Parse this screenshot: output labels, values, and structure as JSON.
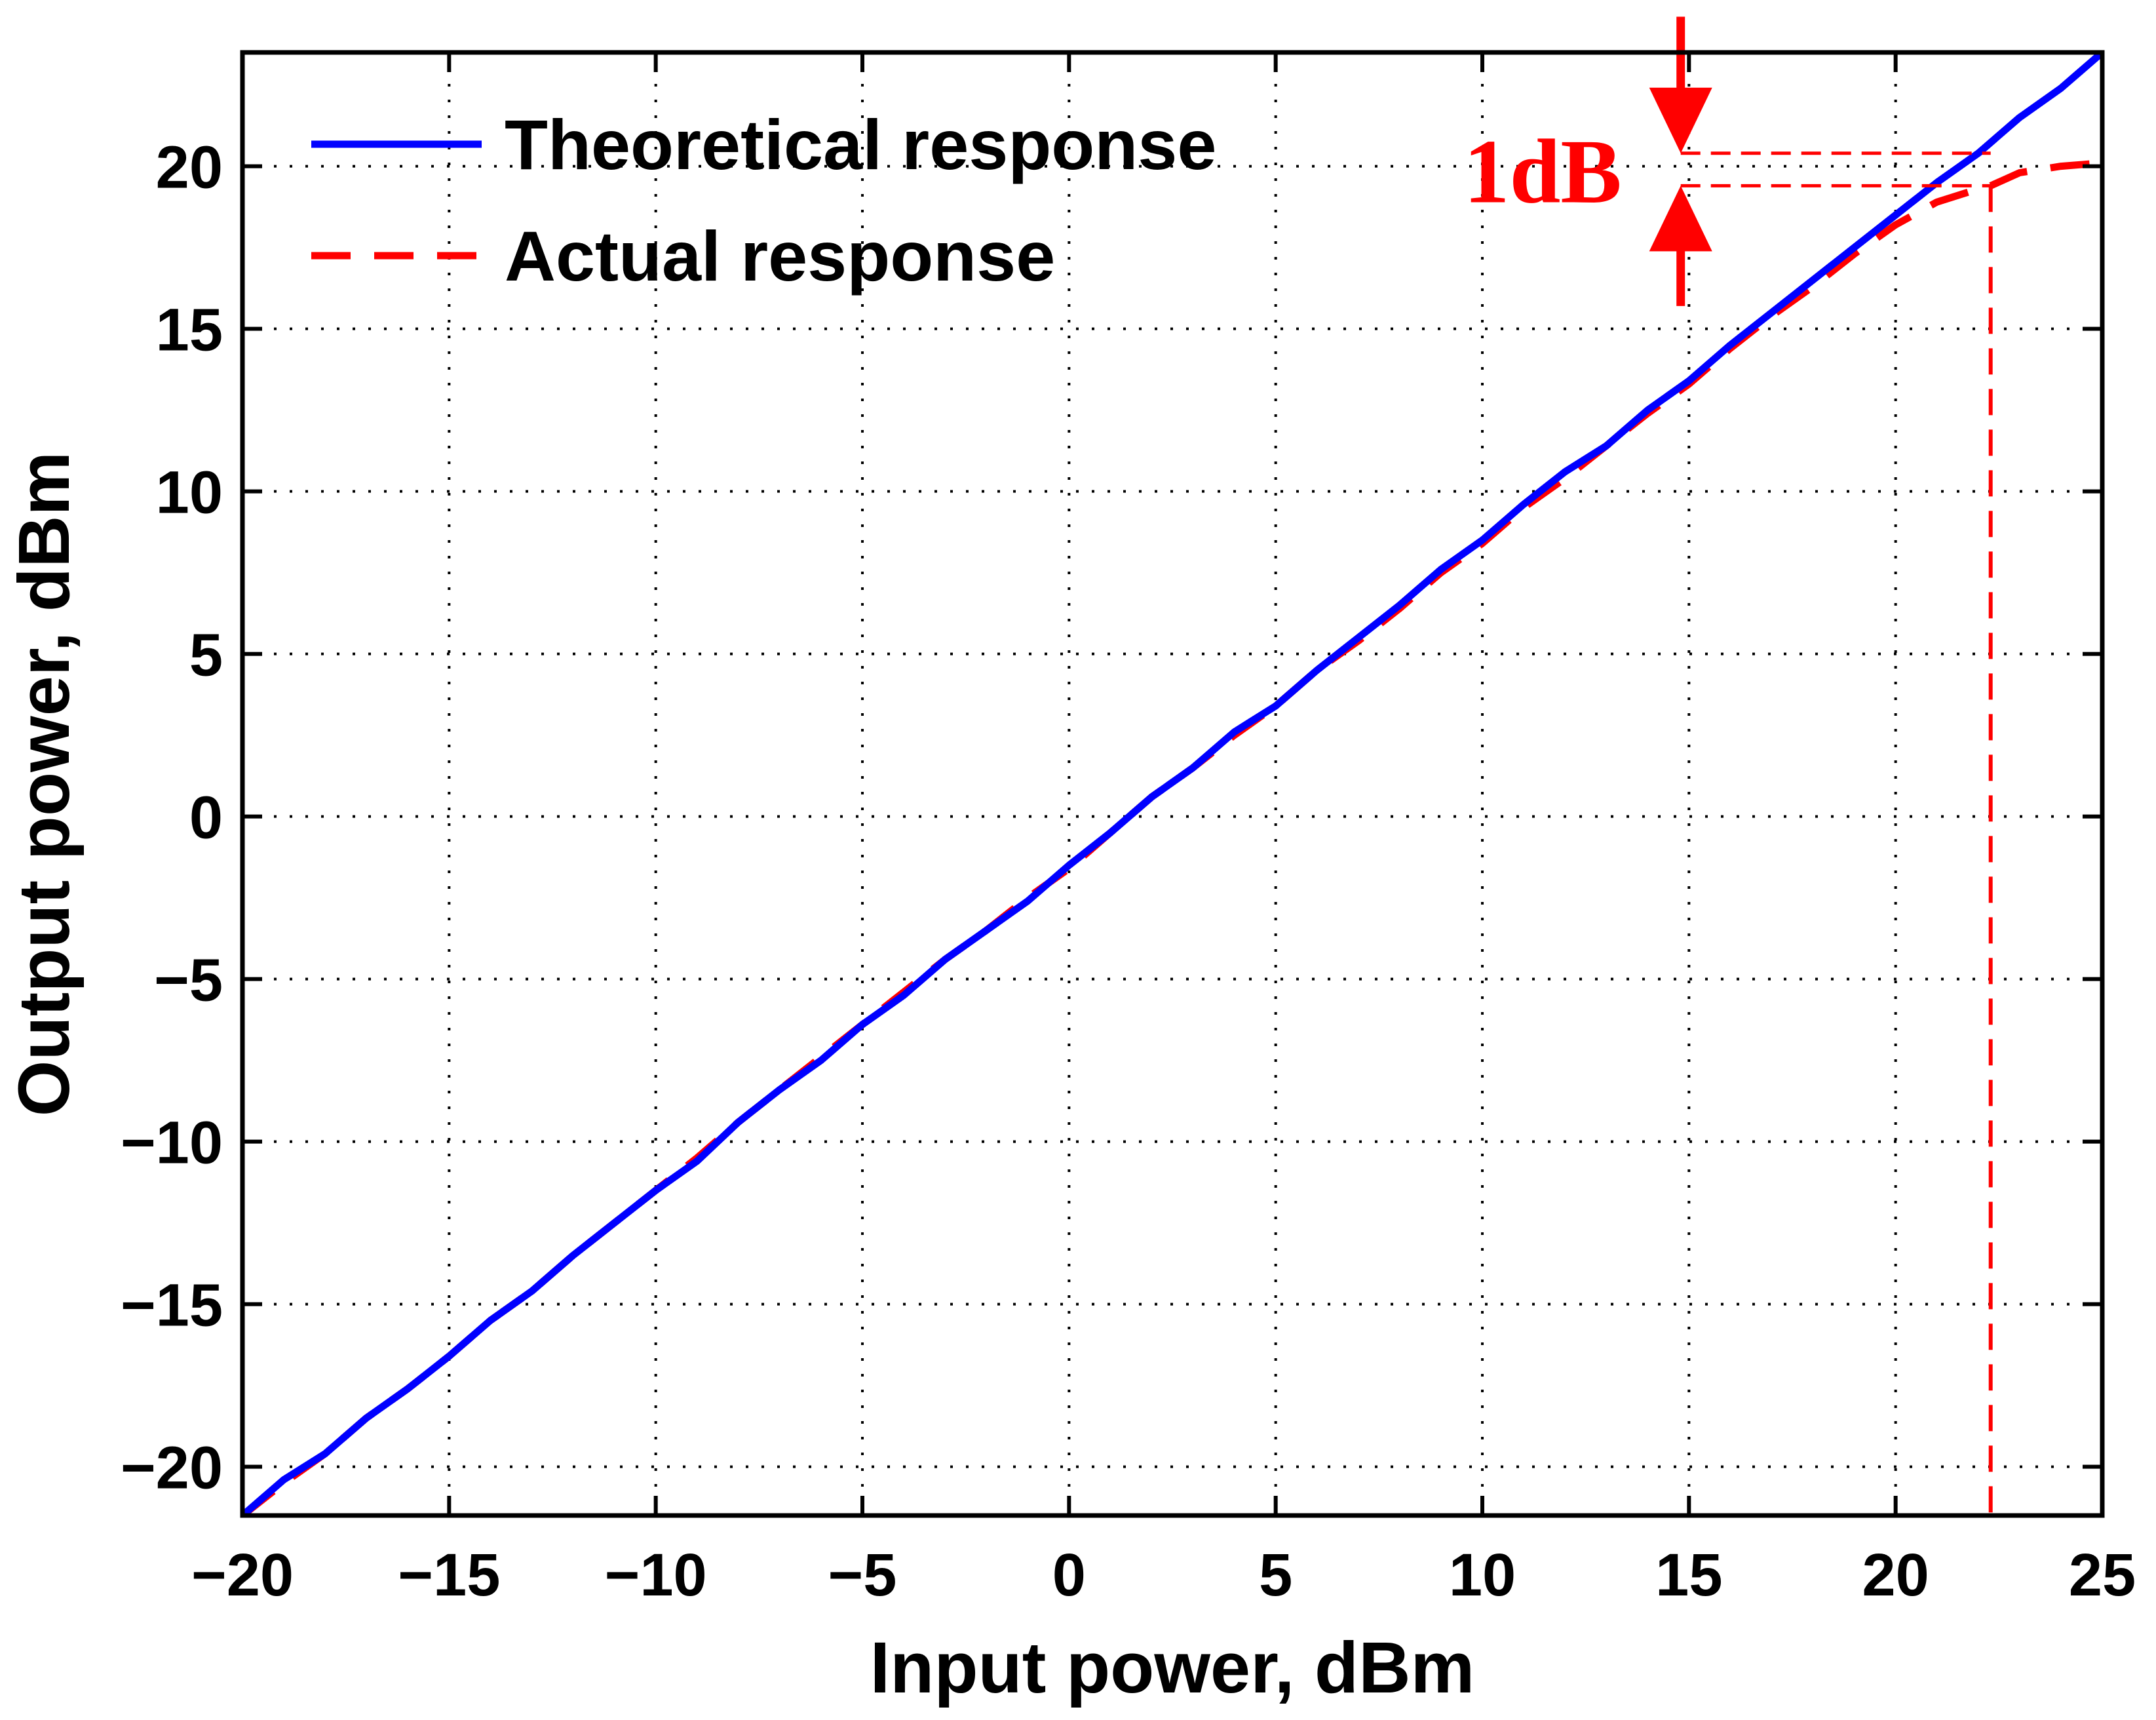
{
  "chart_data": {
    "type": "line",
    "title": "",
    "xlabel": "Input power, dBm",
    "ylabel": "Output power, dBm",
    "xlim": [
      -20,
      25
    ],
    "ylim": [
      -21.5,
      23.5
    ],
    "xticks": [
      -20,
      -15,
      -10,
      -5,
      0,
      5,
      10,
      15,
      20,
      25
    ],
    "yticks": [
      -20,
      -15,
      -10,
      -5,
      0,
      5,
      10,
      15,
      20
    ],
    "grid": true,
    "legend_position": "top-left",
    "series": [
      {
        "name": "Theoretical response",
        "color": "#0000ff",
        "style": "solid",
        "x": [
          -20,
          -19,
          -18,
          -17,
          -16,
          -15,
          -14,
          -13,
          -12,
          -11,
          -10,
          -9,
          -8,
          -7,
          -6,
          -5,
          -4,
          -3,
          -2,
          -1,
          0,
          1,
          2,
          3,
          4,
          5,
          6,
          7,
          8,
          9,
          10,
          11,
          12,
          13,
          14,
          15,
          16,
          17,
          18,
          19,
          20,
          21,
          22,
          23,
          24,
          25
        ],
        "y": [
          -21.5,
          -20.4,
          -19.6,
          -18.5,
          -17.6,
          -16.6,
          -15.5,
          -14.6,
          -13.5,
          -12.5,
          -11.5,
          -10.6,
          -9.4,
          -8.4,
          -7.5,
          -6.4,
          -5.5,
          -4.4,
          -3.5,
          -2.6,
          -1.5,
          -0.5,
          0.6,
          1.5,
          2.6,
          3.4,
          4.5,
          5.5,
          6.5,
          7.6,
          8.5,
          9.6,
          10.6,
          11.4,
          12.5,
          13.4,
          14.5,
          15.5,
          16.5,
          17.5,
          18.5,
          19.5,
          20.4,
          21.5,
          22.4,
          23.5
        ]
      },
      {
        "name": "Actual response",
        "color": "#ff0000",
        "style": "dashed",
        "x": [
          -20,
          -19,
          -18,
          -17,
          -16,
          -15,
          -14,
          -13,
          -12,
          -11,
          -10,
          -9,
          -8,
          -7,
          -6,
          -5,
          -4,
          -3,
          -2,
          -1,
          0,
          1,
          2,
          3,
          4,
          5,
          6,
          7,
          8,
          9,
          10,
          11,
          12,
          13,
          14,
          15,
          16,
          17,
          18,
          19,
          20,
          21,
          22,
          22.3,
          23,
          24,
          25
        ],
        "y": [
          -21.5,
          -20.5,
          -19.6,
          -18.5,
          -17.6,
          -16.6,
          -15.5,
          -14.6,
          -13.5,
          -12.5,
          -11.5,
          -10.5,
          -9.4,
          -8.4,
          -7.4,
          -6.4,
          -5.4,
          -4.4,
          -3.5,
          -2.5,
          -1.6,
          -0.5,
          0.6,
          1.5,
          2.5,
          3.4,
          4.5,
          5.4,
          6.4,
          7.5,
          8.4,
          9.5,
          10.4,
          11.4,
          12.4,
          13.3,
          14.4,
          15.4,
          16.3,
          17.3,
          18.2,
          18.9,
          19.3,
          19.4,
          19.8,
          20.0,
          20.1
        ]
      }
    ],
    "annotations": {
      "label": "1dB",
      "color": "#ff0000",
      "upper_y": 20.4,
      "lower_y": 19.4,
      "arrow_x": 14.8,
      "upper_line_x": [
        14.8,
        22.3
      ],
      "lower_line_x": [
        14.8,
        22.3
      ],
      "vertical_line_x": 22.3,
      "arrow_top_y": 24.6,
      "arrow_bottom_y": 15.7
    }
  }
}
